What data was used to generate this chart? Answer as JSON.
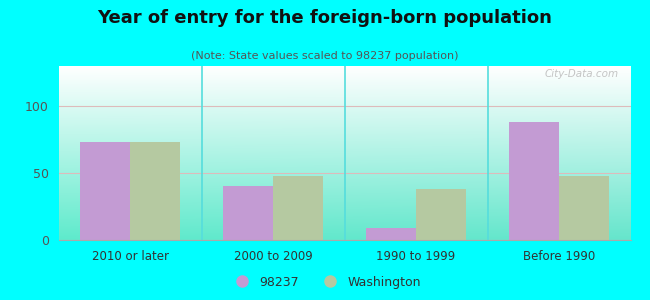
{
  "title": "Year of entry for the foreign-born population",
  "subtitle": "(Note: State values scaled to 98237 population)",
  "categories": [
    "2010 or later",
    "2000 to 2009",
    "1990 to 1999",
    "Before 1990"
  ],
  "values_98237": [
    73,
    40,
    9,
    88
  ],
  "values_washington": [
    73,
    48,
    38,
    48
  ],
  "color_98237": "#c39bd3",
  "color_washington": "#b5c9a1",
  "ylim": [
    0,
    130
  ],
  "yticks": [
    0,
    50,
    100
  ],
  "legend_98237": "98237",
  "legend_washington": "Washington",
  "outer_background": "#00ffff",
  "bar_width": 0.35,
  "watermark": "City-Data.com"
}
